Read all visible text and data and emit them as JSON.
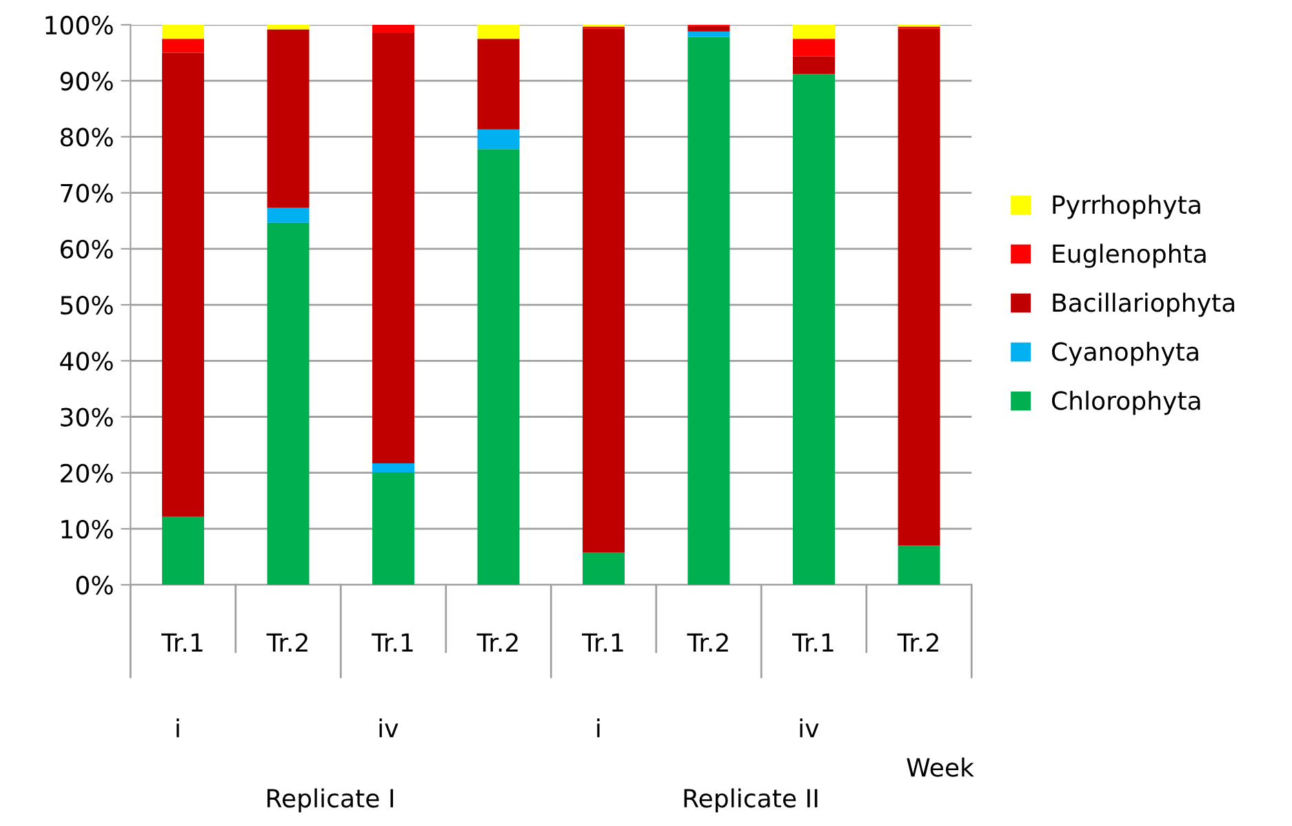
{
  "chart_data": {
    "type": "bar",
    "stacked": true,
    "categories": [
      "Tr.1",
      "Tr.2",
      "Tr.1",
      "Tr.2",
      "Tr.1",
      "Tr.2",
      "Tr.1",
      "Tr.2"
    ],
    "series": [
      {
        "name": "Chlorophyta",
        "color": "#00b050",
        "values": [
          12.2,
          64.7,
          20.1,
          77.8,
          5.8,
          97.8,
          91.2,
          7.0
        ]
      },
      {
        "name": "Cyanophyta",
        "color": "#00b0f0",
        "values": [
          0,
          2.6,
          1.6,
          3.5,
          0,
          1.0,
          0,
          0
        ]
      },
      {
        "name": "Bacillariophyta",
        "color": "#c00000",
        "values": [
          82.8,
          31.9,
          76.8,
          16.2,
          93.5,
          1.0,
          3.2,
          92.3
        ]
      },
      {
        "name": "Euglenophta",
        "color": "#ff0000",
        "values": [
          2.5,
          0,
          1.5,
          0,
          0.4,
          0.2,
          3.1,
          0.4
        ]
      },
      {
        "name": "Pyrrhophyta",
        "color": "#ffff00",
        "values": [
          2.5,
          0.8,
          0,
          2.5,
          0.3,
          0,
          2.5,
          0.3
        ]
      }
    ],
    "ylim": [
      0,
      100
    ],
    "yticks": [
      {
        "value": 0,
        "label": "0%"
      },
      {
        "value": 10,
        "label": "10%"
      },
      {
        "value": 20,
        "label": "20%"
      },
      {
        "value": 30,
        "label": "30%"
      },
      {
        "value": 40,
        "label": "40%"
      },
      {
        "value": 50,
        "label": "50%"
      },
      {
        "value": 60,
        "label": "60%"
      },
      {
        "value": 70,
        "label": "70%"
      },
      {
        "value": 80,
        "label": "80%"
      },
      {
        "value": 90,
        "label": "90%"
      },
      {
        "value": 100,
        "label": "100%"
      }
    ],
    "grid": "y",
    "legend": "right",
    "annotations": [
      "i",
      "iv",
      "i",
      "iv",
      "Week",
      "Replicate I",
      "Replicate II"
    ]
  }
}
